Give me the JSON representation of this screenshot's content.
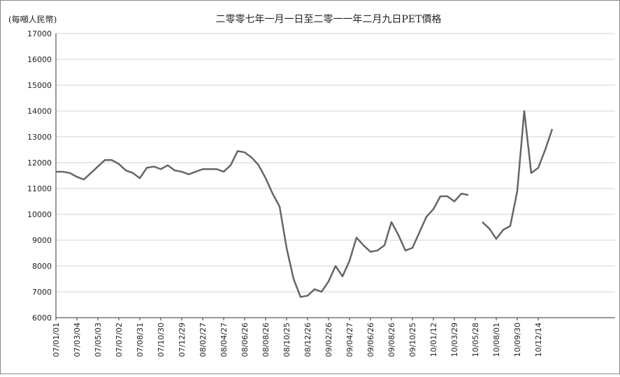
{
  "chart_data": {
    "type": "line",
    "title": "二零零七年一月一日至二零一一年二月九日PET價格",
    "y_axis_label": "(每噸人民幣)",
    "categories": [
      "07/01/01",
      null,
      null,
      "07/03/04",
      null,
      null,
      "07/05/03",
      null,
      null,
      "07/07/02",
      null,
      null,
      "07/08/31",
      null,
      null,
      "07/10/30",
      null,
      null,
      "07/12/29",
      null,
      null,
      "08/02/27",
      null,
      null,
      "08/04/27",
      null,
      null,
      "08/06/26",
      null,
      null,
      "08/08/26",
      null,
      null,
      "08/10/25",
      null,
      null,
      "08/12/26",
      null,
      null,
      "09/02/26",
      null,
      null,
      "09/04/27",
      null,
      null,
      "09/06/26",
      null,
      null,
      "09/08/26",
      null,
      null,
      "09/10/25",
      null,
      null,
      "10/01/12",
      null,
      null,
      "10/03/29",
      null,
      null,
      "10/05/28",
      null,
      null,
      "10/08/01",
      null,
      null,
      "10/09/30",
      null,
      null,
      "10/12/14",
      null,
      null
    ],
    "series": [
      {
        "name": "PET",
        "color": "#666666",
        "values": [
          11650,
          11650,
          11600,
          11450,
          11350,
          11600,
          11850,
          12100,
          12100,
          11950,
          11700,
          11600,
          11400,
          11800,
          11850,
          11750,
          11900,
          11700,
          11650,
          11550,
          11650,
          11750,
          11750,
          11750,
          11650,
          11900,
          12450,
          12400,
          12200,
          11900,
          11400,
          10800,
          10300,
          8700,
          7500,
          6800,
          6850,
          7100,
          7000,
          7400,
          8000,
          7600,
          8200,
          9100,
          8800,
          8550,
          8600,
          8800,
          9700,
          9200,
          8600,
          8700,
          9300,
          9900,
          10200,
          10700,
          10700,
          10500,
          10800,
          10750,
          null,
          9700,
          9450,
          9050,
          9400,
          9550,
          10900,
          14000,
          11600,
          11800,
          12500,
          13300
        ]
      }
    ],
    "ylim": [
      6000,
      17000
    ],
    "yticks": [
      6000,
      7000,
      8000,
      9000,
      10000,
      11000,
      12000,
      13000,
      14000,
      15000,
      16000,
      17000
    ],
    "grid": true
  }
}
